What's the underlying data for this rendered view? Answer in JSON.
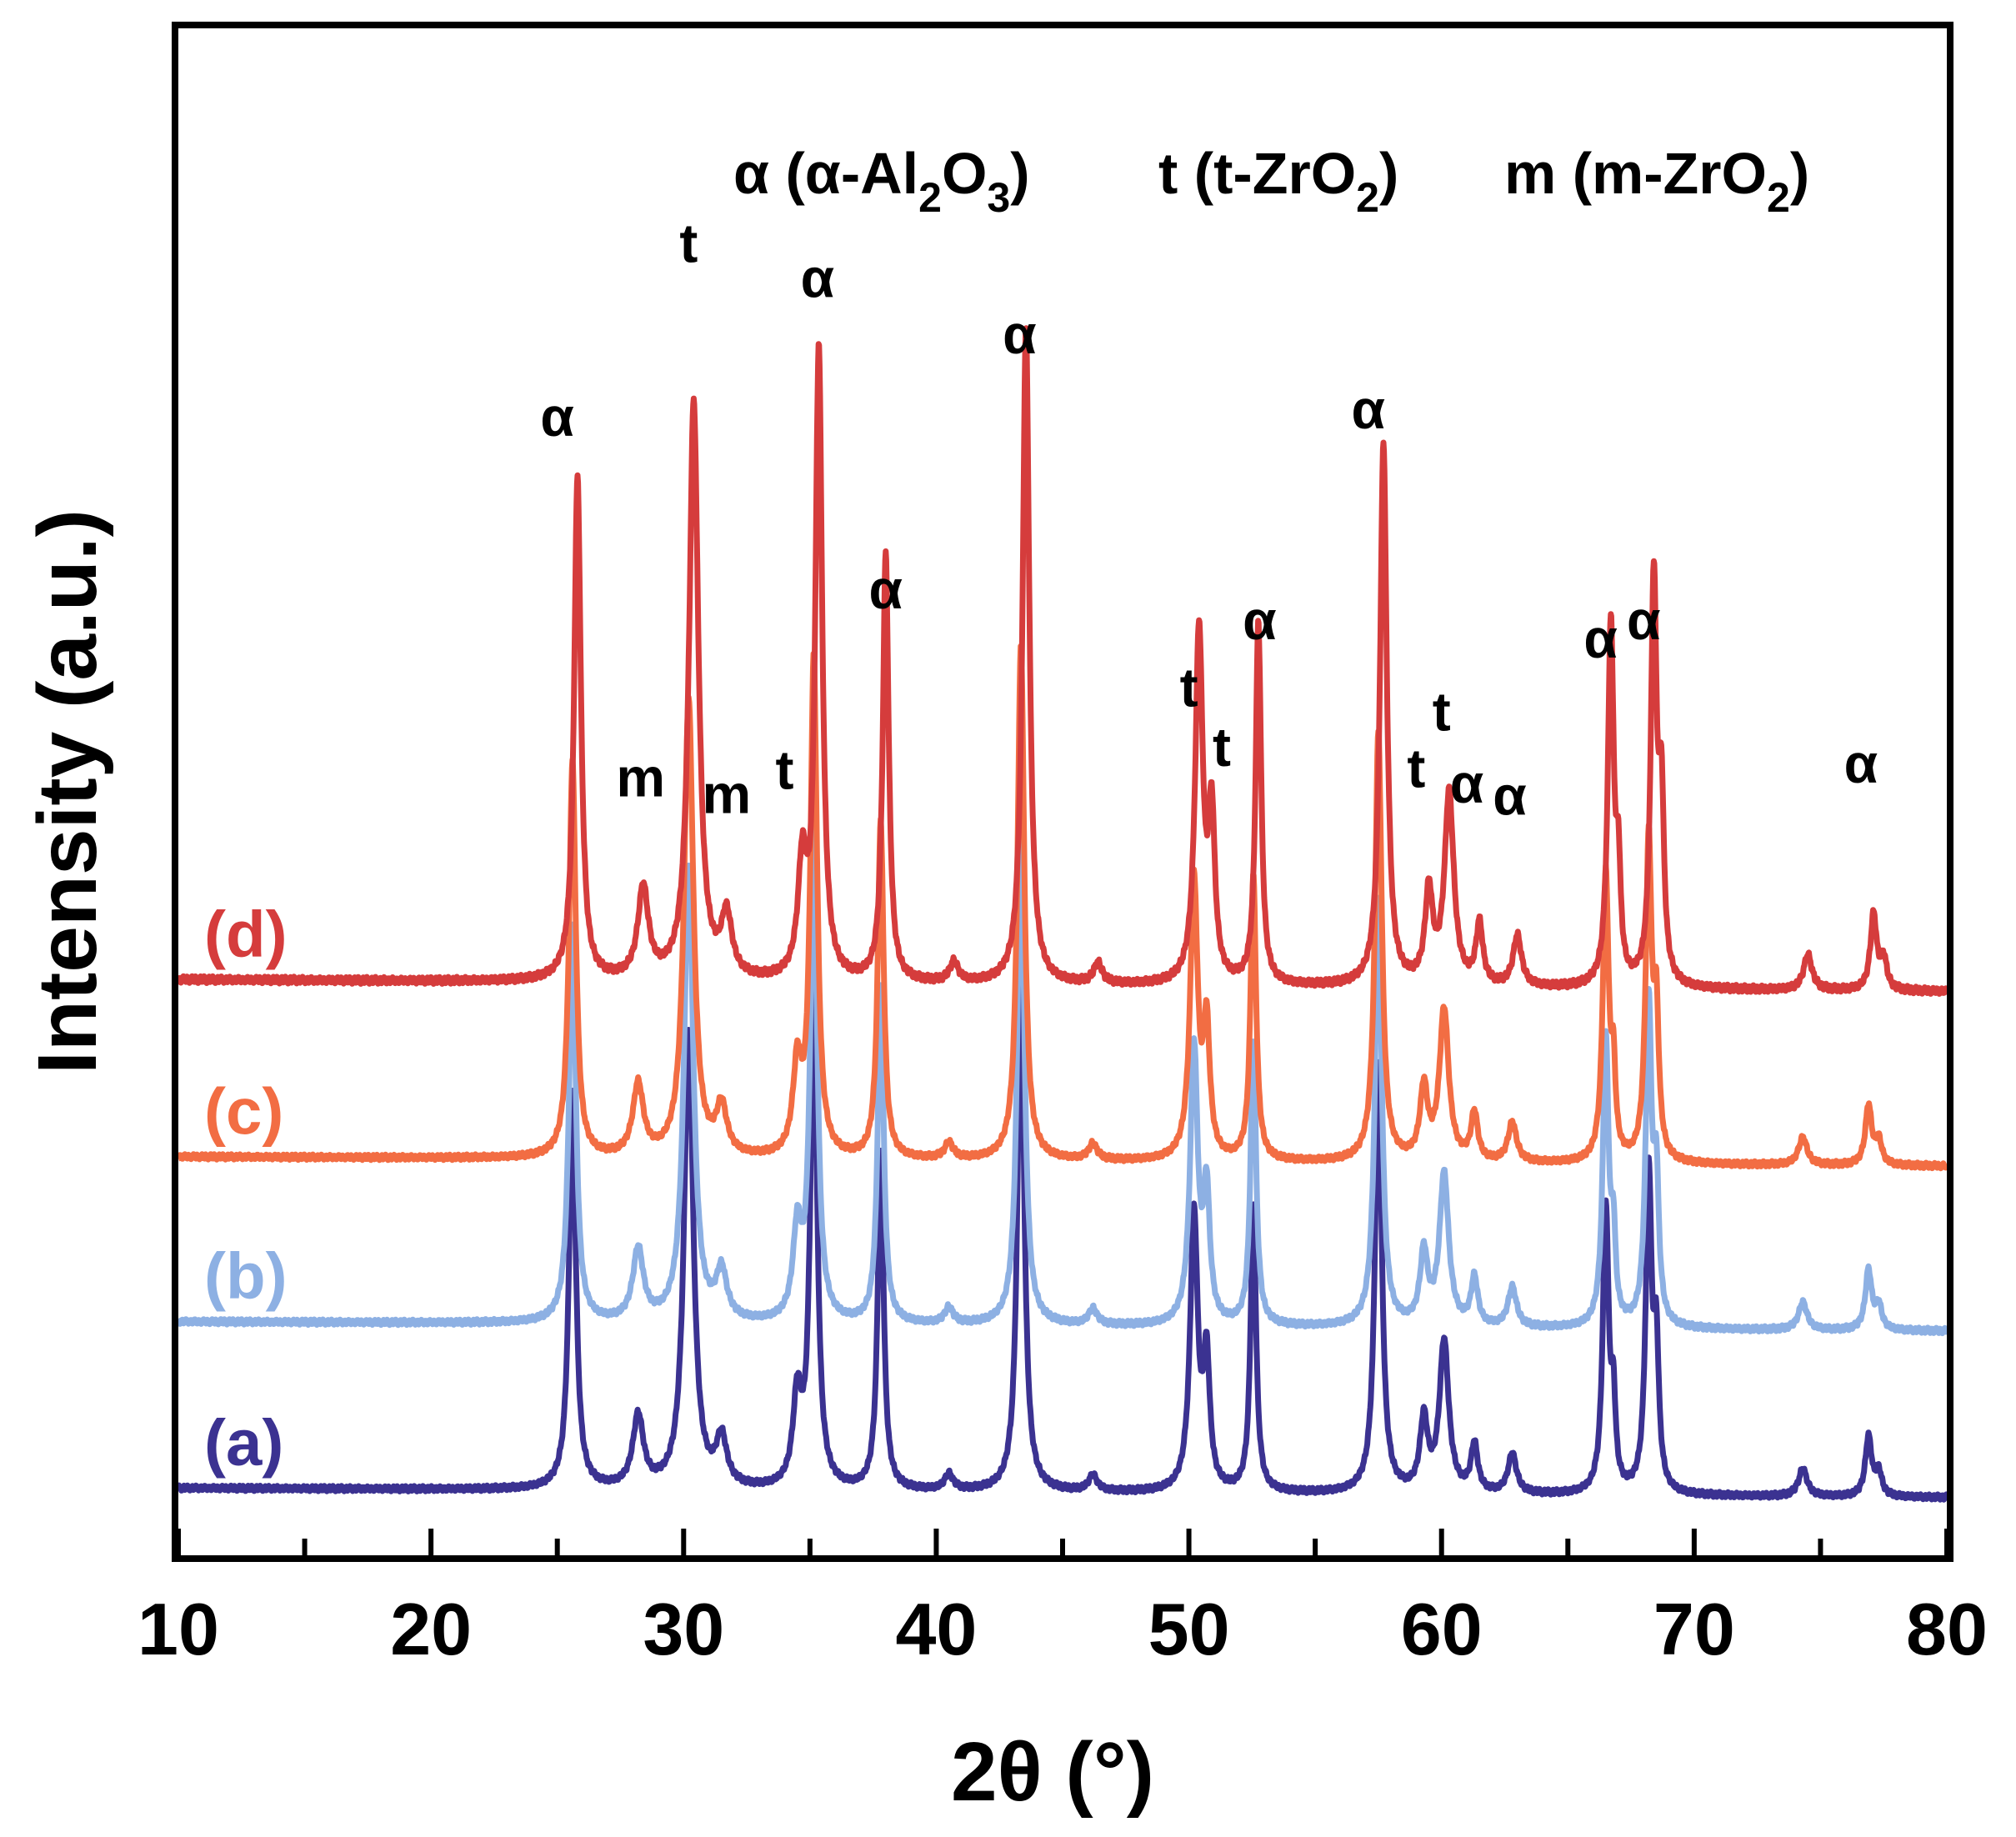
{
  "chart_data": {
    "type": "line",
    "xlabel": "2θ (°)",
    "ylabel": "Intensity (a.u.)",
    "xlim": [
      10,
      80
    ],
    "ylim": [
      0,
      100
    ],
    "x_ticks": [
      "10",
      "20",
      "30",
      "40",
      "50",
      "60",
      "70",
      "80"
    ],
    "legend": [
      {
        "symbol": "α",
        "main": "(α-Al",
        "parts": [
          {
            "t": "2",
            "sub": true
          },
          {
            "t": "O",
            "sub": false
          },
          {
            "t": "3",
            "sub": true
          },
          {
            "t": ")",
            "sub": false
          }
        ]
      },
      {
        "symbol": "t",
        "main": "(t-ZrO",
        "parts": [
          {
            "t": "2",
            "sub": true
          },
          {
            "t": ")",
            "sub": false
          }
        ]
      },
      {
        "symbol": "m",
        "main": "(m-ZrO",
        "parts": [
          {
            "t": "2",
            "sub": true
          },
          {
            "t": ")",
            "sub": false
          }
        ]
      }
    ],
    "peaks": [
      {
        "x": 25.6,
        "w": 0.16,
        "h": 1.0
      },
      {
        "x": 28.2,
        "w": 0.25,
        "h": 0.18
      },
      {
        "x": 30.2,
        "w": 0.22,
        "h": 1.15
      },
      {
        "x": 31.5,
        "w": 0.25,
        "h": 0.12
      },
      {
        "x": 34.5,
        "w": 0.2,
        "h": 0.22
      },
      {
        "x": 35.15,
        "w": 0.16,
        "h": 1.25
      },
      {
        "x": 37.8,
        "w": 0.14,
        "h": 0.85
      },
      {
        "x": 40.5,
        "w": 0.2,
        "h": 0.04
      },
      {
        "x": 43.35,
        "w": 0.16,
        "h": 1.3
      },
      {
        "x": 46.2,
        "w": 0.2,
        "h": 0.04
      },
      {
        "x": 50.2,
        "w": 0.18,
        "h": 0.7
      },
      {
        "x": 50.7,
        "w": 0.15,
        "h": 0.32
      },
      {
        "x": 52.55,
        "w": 0.13,
        "h": 0.72
      },
      {
        "x": 57.5,
        "w": 0.16,
        "h": 1.08
      },
      {
        "x": 59.3,
        "w": 0.18,
        "h": 0.18
      },
      {
        "x": 60.1,
        "w": 0.22,
        "h": 0.38
      },
      {
        "x": 61.3,
        "w": 0.16,
        "h": 0.12
      },
      {
        "x": 62.8,
        "w": 0.2,
        "h": 0.1
      },
      {
        "x": 66.5,
        "w": 0.14,
        "h": 0.72
      },
      {
        "x": 66.8,
        "w": 0.1,
        "h": 0.2
      },
      {
        "x": 68.2,
        "w": 0.14,
        "h": 0.8
      },
      {
        "x": 68.5,
        "w": 0.12,
        "h": 0.34
      },
      {
        "x": 74.3,
        "w": 0.2,
        "h": 0.07
      },
      {
        "x": 76.9,
        "w": 0.15,
        "h": 0.15
      },
      {
        "x": 77.3,
        "w": 0.15,
        "h": 0.06
      }
    ],
    "series": [
      {
        "id": "a",
        "name": "(a)",
        "color": "#3b3291",
        "offset": 4.4,
        "scale": 26.0,
        "shift": 0.0
      },
      {
        "id": "b",
        "name": "(b)",
        "color": "#8db0e3",
        "offset": 15.3,
        "scale": 26.0,
        "shift": 0.0
      },
      {
        "id": "c",
        "name": "(c)",
        "color": "#f26d43",
        "offset": 26.1,
        "scale": 26.0,
        "shift": 0.0
      },
      {
        "id": "d",
        "name": "(d)",
        "color": "#d53c3c",
        "offset": 37.7,
        "scale": 33.0,
        "shift": -0.2
      }
    ],
    "annotations": [
      {
        "text": "α",
        "x": 25.0,
        "y": 73.3
      },
      {
        "text": "m",
        "x": 28.3,
        "y": 49.7
      },
      {
        "text": "t",
        "x": 30.2,
        "y": 84.7
      },
      {
        "text": "m",
        "x": 31.7,
        "y": 48.6
      },
      {
        "text": "t",
        "x": 34.0,
        "y": 50.2
      },
      {
        "text": "α",
        "x": 35.3,
        "y": 82.4
      },
      {
        "text": "α",
        "x": 38.0,
        "y": 62.0
      },
      {
        "text": "α",
        "x": 43.3,
        "y": 78.7
      },
      {
        "text": "t",
        "x": 50.0,
        "y": 55.6
      },
      {
        "text": "t",
        "x": 51.3,
        "y": 51.7
      },
      {
        "text": "α",
        "x": 52.8,
        "y": 60.0
      },
      {
        "text": "α",
        "x": 57.1,
        "y": 73.8
      },
      {
        "text": "t",
        "x": 59.0,
        "y": 50.3
      },
      {
        "text": "t",
        "x": 60.0,
        "y": 54.0
      },
      {
        "text": "α",
        "x": 61.0,
        "y": 49.3
      },
      {
        "text": "α",
        "x": 62.7,
        "y": 48.5
      },
      {
        "text": "α",
        "x": 66.3,
        "y": 58.8
      },
      {
        "text": "α",
        "x": 68.0,
        "y": 60.0
      },
      {
        "text": "α",
        "x": 76.6,
        "y": 50.6
      }
    ]
  }
}
